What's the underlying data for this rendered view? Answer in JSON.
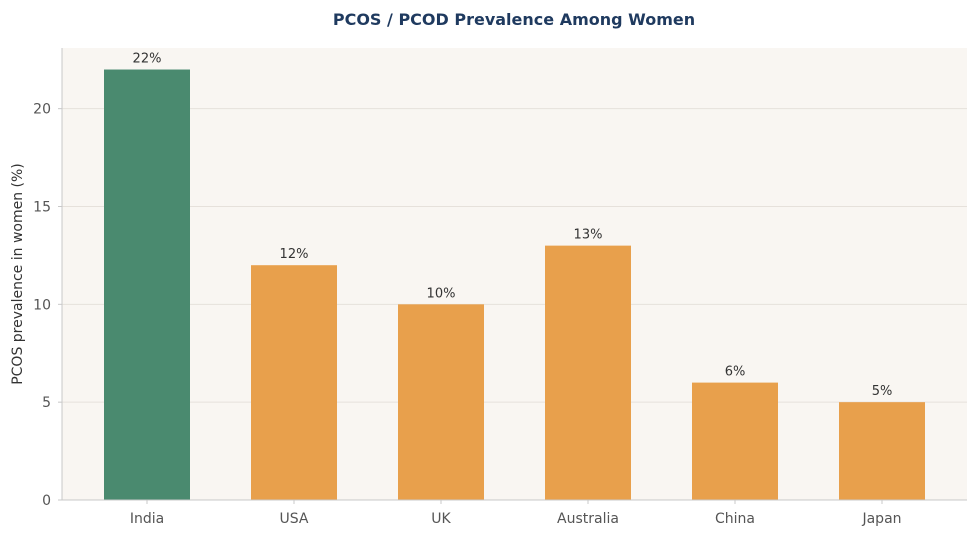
{
  "chart_data": {
    "type": "bar",
    "title": "PCOS / PCOD Prevalence Among Women",
    "xlabel": "",
    "ylabel": "PCOS prevalence in women (%)",
    "categories": [
      "India",
      "USA",
      "UK",
      "Australia",
      "China",
      "Japan"
    ],
    "values": [
      22,
      12,
      10,
      13,
      6,
      5
    ],
    "value_labels": [
      "22%",
      "12%",
      "10%",
      "13%",
      "6%",
      "5%"
    ],
    "ylim": [
      0,
      23.1
    ],
    "yticks": [
      0,
      5,
      10,
      15,
      20
    ],
    "grid": true,
    "colors": {
      "highlight": "#4a8a6f",
      "default": "#e8a04c",
      "plot_background": "#f9f6f2",
      "title": "#1f3a5f",
      "grid": "#e6e1db",
      "axis": "#c8c8c8",
      "tick_text": "#555555",
      "value_text": "#333333"
    },
    "highlight_category": "India"
  }
}
